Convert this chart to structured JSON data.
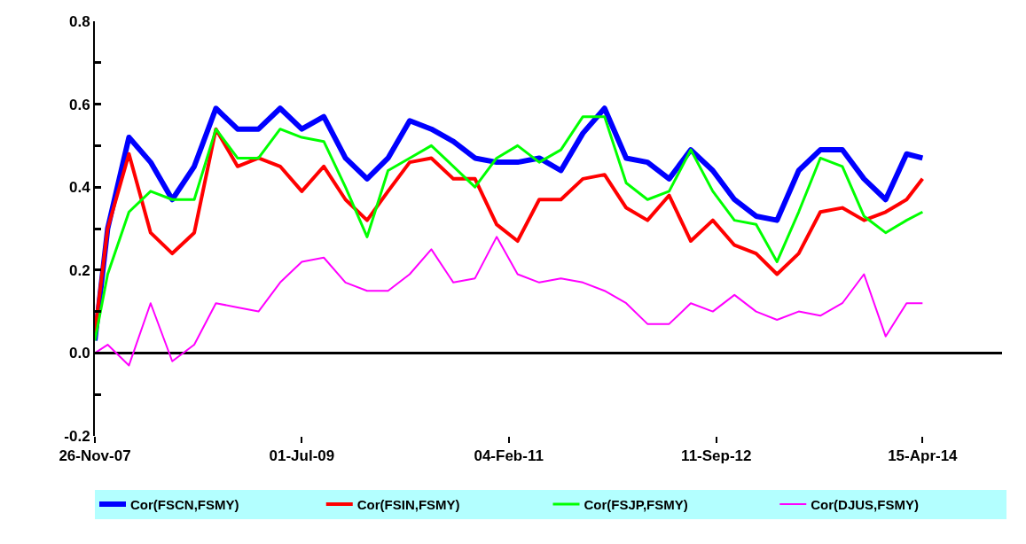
{
  "chart_data": {
    "type": "line",
    "x": [
      "2007-11-26",
      "2008-01",
      "2008-03",
      "2008-05",
      "2008-07",
      "2008-09",
      "2008-11",
      "2009-01",
      "2009-03",
      "2009-05",
      "2009-07",
      "2009-09",
      "2009-11",
      "2010-01",
      "2010-03",
      "2010-05",
      "2010-07",
      "2010-09",
      "2010-11",
      "2011-01",
      "2011-03",
      "2011-05",
      "2011-07",
      "2011-09",
      "2011-11",
      "2012-01",
      "2012-03",
      "2012-05",
      "2012-07",
      "2012-09",
      "2012-11",
      "2013-01",
      "2013-03",
      "2013-05",
      "2013-07",
      "2013-09",
      "2013-11",
      "2014-01",
      "2014-03",
      "2014-04-15"
    ],
    "series": [
      {
        "name": "Cor(FSCN,FSMY)",
        "color": "#0000ff",
        "values": [
          0.03,
          0.3,
          0.52,
          0.46,
          0.37,
          0.45,
          0.59,
          0.54,
          0.54,
          0.59,
          0.54,
          0.57,
          0.47,
          0.42,
          0.47,
          0.56,
          0.54,
          0.51,
          0.47,
          0.46,
          0.46,
          0.47,
          0.44,
          0.53,
          0.59,
          0.47,
          0.46,
          0.42,
          0.49,
          0.44,
          0.37,
          0.33,
          0.32,
          0.44,
          0.49,
          0.49,
          0.42,
          0.37,
          0.48,
          0.47
        ]
      },
      {
        "name": "Cor(FSIN,FSMY)",
        "color": "#ff0000",
        "values": [
          0.05,
          0.3,
          0.48,
          0.29,
          0.24,
          0.29,
          0.54,
          0.45,
          0.47,
          0.45,
          0.39,
          0.45,
          0.37,
          0.32,
          0.39,
          0.46,
          0.47,
          0.42,
          0.42,
          0.31,
          0.27,
          0.37,
          0.37,
          0.42,
          0.43,
          0.35,
          0.32,
          0.38,
          0.27,
          0.32,
          0.26,
          0.24,
          0.19,
          0.24,
          0.34,
          0.35,
          0.32,
          0.34,
          0.37,
          0.42
        ]
      },
      {
        "name": "Cor(FSJP,FSMY)",
        "color": "#00ff00",
        "values": [
          0.03,
          0.19,
          0.34,
          0.39,
          0.37,
          0.37,
          0.54,
          0.47,
          0.47,
          0.54,
          0.52,
          0.51,
          0.4,
          0.28,
          0.44,
          0.47,
          0.5,
          0.45,
          0.4,
          0.47,
          0.5,
          0.46,
          0.49,
          0.57,
          0.57,
          0.41,
          0.37,
          0.39,
          0.49,
          0.39,
          0.32,
          0.31,
          0.22,
          0.34,
          0.47,
          0.45,
          0.33,
          0.29,
          0.32,
          0.34
        ]
      },
      {
        "name": "Cor(DJUS,FSMY)",
        "color": "#ff00ff",
        "values": [
          0.0,
          0.02,
          -0.03,
          0.12,
          -0.02,
          0.02,
          0.12,
          0.11,
          0.1,
          0.17,
          0.22,
          0.23,
          0.17,
          0.15,
          0.15,
          0.19,
          0.25,
          0.17,
          0.18,
          0.28,
          0.19,
          0.17,
          0.18,
          0.17,
          0.15,
          0.12,
          0.07,
          0.07,
          0.12,
          0.1,
          0.14,
          0.1,
          0.08,
          0.1,
          0.09,
          0.12,
          0.19,
          0.04,
          0.12,
          0.12
        ]
      }
    ],
    "xlim": [
      "2007-11-26",
      "2014-11-25"
    ],
    "xticks": [
      {
        "value": "2007-11-26",
        "label": "26-Nov-07"
      },
      {
        "value": "2009-07-01",
        "label": "01-Jul-09"
      },
      {
        "value": "2011-02-04",
        "label": "04-Feb-11"
      },
      {
        "value": "2012-09-11",
        "label": "11-Sep-12"
      },
      {
        "value": "2014-04-15",
        "label": "15-Apr-14"
      }
    ],
    "ylim": [
      -0.2,
      0.8
    ],
    "yticks": [
      {
        "value": -0.2,
        "label": "-0.2"
      },
      {
        "value": -0.1,
        "label": null
      },
      {
        "value": 0,
        "label": "0.0"
      },
      {
        "value": 0.1,
        "label": null
      },
      {
        "value": 0.2,
        "label": "0.2"
      },
      {
        "value": 0.3,
        "label": null
      },
      {
        "value": 0.4,
        "label": "0.4"
      },
      {
        "value": 0.5,
        "label": null
      },
      {
        "value": 0.6,
        "label": "0.6"
      },
      {
        "value": 0.7,
        "label": null
      },
      {
        "value": 0.8,
        "label": "0.8"
      }
    ],
    "grid": false,
    "ref_lines": [
      {
        "axis": "y",
        "value": 0,
        "color": "#000000"
      }
    ],
    "legend": "bottom",
    "marker": "none",
    "line_style": "solid"
  }
}
